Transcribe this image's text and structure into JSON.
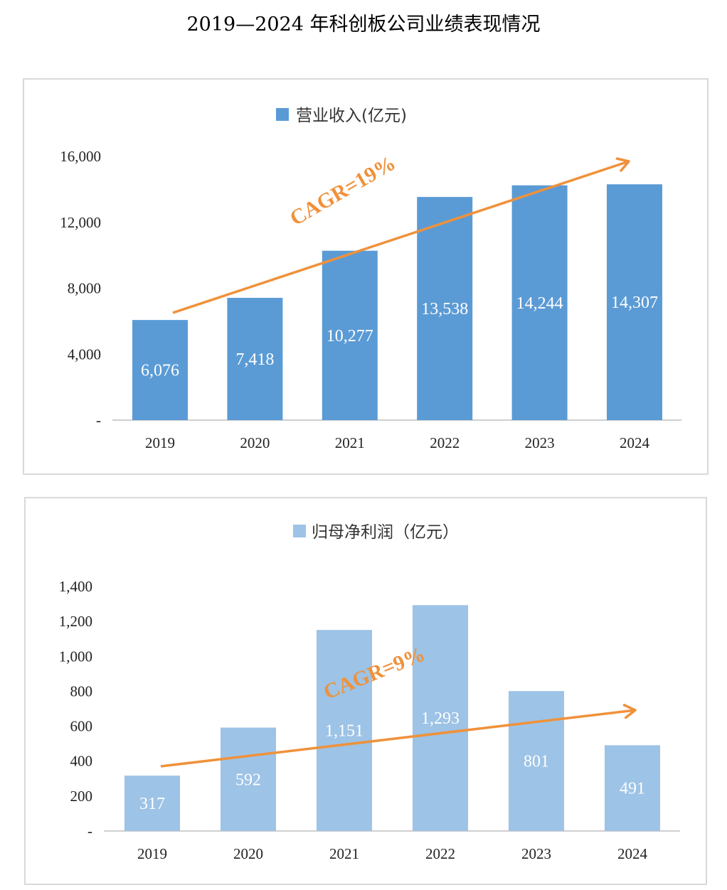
{
  "title": "2019—2024 年科创板公司业绩表现情况",
  "chart_data": [
    {
      "type": "bar",
      "legend": "营业收入(亿元)",
      "legend_position": "top",
      "color": "#5b9bd5",
      "categories": [
        "2019",
        "2020",
        "2021",
        "2022",
        "2023",
        "2024"
      ],
      "series": [
        {
          "name": "营业收入(亿元)",
          "values": [
            6076,
            7418,
            10277,
            13538,
            14244,
            14307
          ]
        }
      ],
      "data_labels": [
        "6,076",
        "7,418",
        "10,277",
        "13,538",
        "14,244",
        "14,307"
      ],
      "y_ticks": [
        "-",
        "4,000",
        "8,000",
        "12,000",
        "16,000"
      ],
      "ylim": [
        0,
        16000
      ],
      "grid": false,
      "annotation": "CAGR=19%",
      "arrow_color": "#f0913a"
    },
    {
      "type": "bar",
      "legend": "归母净利润（亿元）",
      "legend_position": "top",
      "color": "#9dc3e6",
      "categories": [
        "2019",
        "2020",
        "2021",
        "2022",
        "2023",
        "2024"
      ],
      "series": [
        {
          "name": "归母净利润（亿元）",
          "values": [
            317,
            592,
            1151,
            1293,
            801,
            491
          ]
        }
      ],
      "data_labels": [
        "317",
        "592",
        "1,151",
        "1,293",
        "801",
        "491"
      ],
      "y_ticks": [
        "-",
        "200",
        "400",
        "600",
        "800",
        "1,000",
        "1,200",
        "1,400"
      ],
      "ylim": [
        0,
        1400
      ],
      "grid": false,
      "annotation": "CAGR=9%",
      "arrow_color": "#f0913a"
    }
  ]
}
